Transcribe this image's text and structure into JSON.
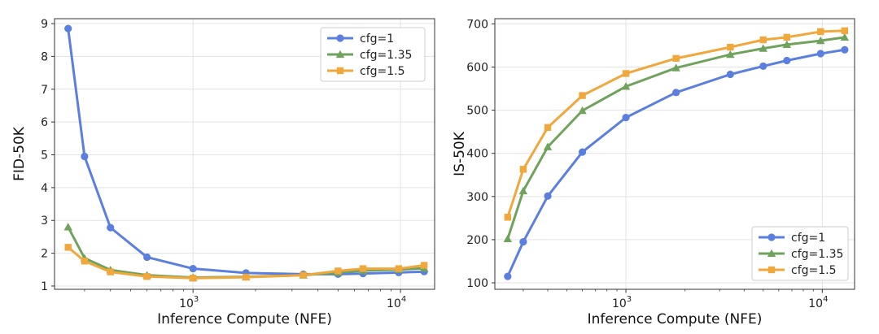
{
  "chart_data": [
    {
      "type": "line",
      "xscale": "log",
      "xlabel": "Inference Compute (NFE)",
      "ylabel": "FID-50K",
      "xlim": [
        215,
        14600
      ],
      "ylim": [
        0.9,
        9.15
      ],
      "x_ticks": [
        {
          "value": 1000,
          "base": "10",
          "exp": "3"
        },
        {
          "value": 10000,
          "base": "10",
          "exp": "4"
        }
      ],
      "y_ticks": [
        1,
        2,
        3,
        4,
        5,
        6,
        7,
        8,
        9
      ],
      "grid": true,
      "legend_position": "top-right",
      "series": [
        {
          "name": "cfg=1",
          "color": "#5b7fde",
          "marker": "circle",
          "x": [
            250,
            300,
            400,
            600,
            1000,
            1800,
            3400,
            5000,
            6600,
            9800,
            13000
          ],
          "values": [
            8.85,
            4.95,
            2.78,
            1.88,
            1.53,
            1.4,
            1.36,
            1.36,
            1.38,
            1.41,
            1.44
          ]
        },
        {
          "name": "cfg=1.35",
          "color": "#6fa35c",
          "marker": "triangle",
          "x": [
            250,
            300,
            400,
            600,
            1000,
            1800,
            3400,
            5000,
            6600,
            9800,
            13000
          ],
          "values": [
            2.8,
            1.85,
            1.49,
            1.33,
            1.26,
            1.28,
            1.33,
            1.41,
            1.47,
            1.5,
            1.54
          ]
        },
        {
          "name": "cfg=1.5",
          "color": "#f0a73c",
          "marker": "square",
          "x": [
            250,
            300,
            400,
            600,
            1000,
            1800,
            3400,
            5000,
            6600,
            9800,
            13000
          ],
          "values": [
            2.18,
            1.76,
            1.43,
            1.29,
            1.24,
            1.27,
            1.33,
            1.46,
            1.53,
            1.53,
            1.63
          ]
        }
      ]
    },
    {
      "type": "line",
      "xscale": "log",
      "xlabel": "Inference Compute (NFE)",
      "ylabel": "IS-50K",
      "xlim": [
        215,
        14600
      ],
      "ylim": [
        85,
        712
      ],
      "x_ticks": [
        {
          "value": 1000,
          "base": "10",
          "exp": "3"
        },
        {
          "value": 10000,
          "base": "10",
          "exp": "4"
        }
      ],
      "y_ticks": [
        100,
        200,
        300,
        400,
        500,
        600,
        700
      ],
      "grid": true,
      "legend_position": "bottom-right",
      "series": [
        {
          "name": "cfg=1",
          "color": "#5b7fde",
          "marker": "circle",
          "x": [
            250,
            300,
            400,
            600,
            1000,
            1800,
            3400,
            5000,
            6600,
            9800,
            13000
          ],
          "values": [
            115,
            195,
            301,
            403,
            483,
            541,
            583,
            602,
            615,
            631,
            640
          ]
        },
        {
          "name": "cfg=1.35",
          "color": "#6fa35c",
          "marker": "triangle",
          "x": [
            250,
            300,
            400,
            600,
            1000,
            1800,
            3400,
            5000,
            6600,
            9800,
            13000
          ],
          "values": [
            202,
            313,
            415,
            499,
            555,
            598,
            629,
            643,
            652,
            661,
            669
          ]
        },
        {
          "name": "cfg=1.5",
          "color": "#f0a73c",
          "marker": "square",
          "x": [
            250,
            300,
            400,
            600,
            1000,
            1800,
            3400,
            5000,
            6600,
            9800,
            13000
          ],
          "values": [
            252,
            363,
            460,
            534,
            585,
            620,
            646,
            663,
            669,
            682,
            684
          ]
        }
      ]
    }
  ]
}
